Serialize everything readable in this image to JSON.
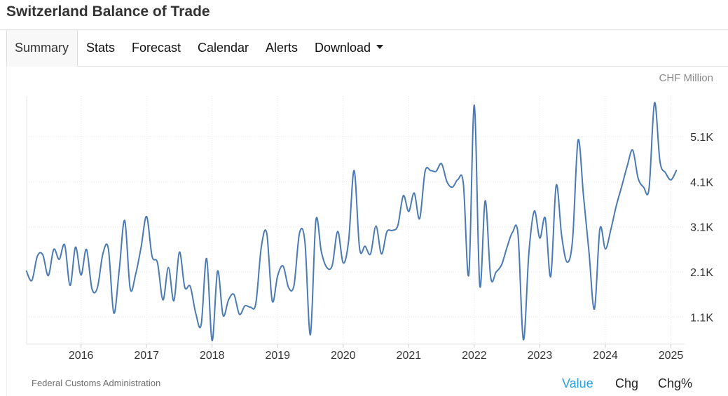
{
  "page": {
    "title": "Switzerland Balance of Trade"
  },
  "tabs": [
    {
      "label": "Summary",
      "active": true
    },
    {
      "label": "Stats"
    },
    {
      "label": "Forecast"
    },
    {
      "label": "Calendar"
    },
    {
      "label": "Alerts"
    },
    {
      "label": "Download",
      "has_dropdown": true
    }
  ],
  "chart": {
    "unit_label": "CHF Million",
    "source": "Federal Customs Administration",
    "toggles": [
      {
        "label": "Value",
        "selected": true
      },
      {
        "label": "Chg",
        "selected": false
      },
      {
        "label": "Chg%",
        "selected": false
      }
    ],
    "line_color": "#4a7ab5"
  },
  "chart_data": {
    "type": "line",
    "title": "",
    "xlabel": "",
    "ylabel": "CHF Million",
    "grid": true,
    "x_tick_labels": [
      "2016",
      "2017",
      "2018",
      "2019",
      "2020",
      "2021",
      "2022",
      "2023",
      "2024",
      "2025"
    ],
    "y_tick_labels": [
      "1.1K",
      "2.1K",
      "3.1K",
      "4.1K",
      "5.1K"
    ],
    "ylim": [
      500,
      6000
    ],
    "xlim": [
      "2015-03",
      "2025-02"
    ],
    "series": [
      {
        "x": [
          "2015-03",
          "2015-04",
          "2015-05",
          "2015-06",
          "2015-07",
          "2015-08",
          "2015-09",
          "2015-10",
          "2015-11",
          "2015-12",
          "2016-01",
          "2016-02",
          "2016-03",
          "2016-04",
          "2016-05",
          "2016-06",
          "2016-07",
          "2016-08",
          "2016-09",
          "2016-10",
          "2016-11",
          "2016-12",
          "2017-01",
          "2017-02",
          "2017-03",
          "2017-04",
          "2017-05",
          "2017-06",
          "2017-07",
          "2017-08",
          "2017-09",
          "2017-10",
          "2017-11",
          "2017-12",
          "2018-01",
          "2018-02",
          "2018-03",
          "2018-04",
          "2018-05",
          "2018-06",
          "2018-07",
          "2018-08",
          "2018-09",
          "2018-10",
          "2018-11",
          "2018-12",
          "2019-01",
          "2019-02",
          "2019-03",
          "2019-04",
          "2019-05",
          "2019-06",
          "2019-07",
          "2019-08",
          "2019-09",
          "2019-10",
          "2019-11",
          "2019-12",
          "2020-01",
          "2020-02",
          "2020-03",
          "2020-04",
          "2020-05",
          "2020-06",
          "2020-07",
          "2020-08",
          "2020-09",
          "2020-10",
          "2020-11",
          "2020-12",
          "2021-01",
          "2021-02",
          "2021-03",
          "2021-04",
          "2021-05",
          "2021-06",
          "2021-07",
          "2021-08",
          "2021-09",
          "2021-10",
          "2021-11",
          "2021-12",
          "2022-01",
          "2022-02",
          "2022-03",
          "2022-04",
          "2022-05",
          "2022-06",
          "2022-07",
          "2022-08",
          "2022-09",
          "2022-10",
          "2022-11",
          "2022-12",
          "2023-01",
          "2023-02",
          "2023-03",
          "2023-04",
          "2023-05",
          "2023-06",
          "2023-07",
          "2023-08",
          "2023-09",
          "2023-10",
          "2023-11",
          "2023-12",
          "2024-01",
          "2024-02",
          "2024-03",
          "2024-04",
          "2024-05",
          "2024-06",
          "2024-07",
          "2024-08",
          "2024-09",
          "2024-10",
          "2024-11",
          "2024-12",
          "2025-01",
          "2025-02"
        ],
        "values": [
          2120,
          1910,
          2450,
          2480,
          2020,
          2600,
          2380,
          2700,
          1800,
          2650,
          2030,
          2600,
          1730,
          1750,
          2500,
          2620,
          1190,
          2150,
          3240,
          1730,
          2050,
          2650,
          3330,
          2450,
          2300,
          1480,
          2200,
          1460,
          2540,
          1760,
          1780,
          1190,
          930,
          2400,
          580,
          2120,
          1140,
          1480,
          1600,
          1160,
          1350,
          1320,
          1400,
          2650,
          2960,
          1460,
          2020,
          2230,
          1750,
          1810,
          2960,
          2760,
          710,
          3240,
          2550,
          2200,
          2250,
          3000,
          2300,
          2800,
          4350,
          2620,
          2670,
          2500,
          3120,
          2500,
          2990,
          3020,
          3130,
          3790,
          3440,
          3850,
          3280,
          4330,
          4350,
          4330,
          4500,
          4100,
          3980,
          4150,
          4060,
          2040,
          5800,
          1800,
          3680,
          1980,
          2100,
          2260,
          2650,
          2980,
          2940,
          600,
          2520,
          3450,
          2850,
          3290,
          2000,
          4020,
          2900,
          2320,
          2820,
          5020,
          3780,
          2540,
          1280,
          3060,
          2610,
          3040,
          3570,
          4000,
          4450,
          4800,
          4180,
          3980,
          3950,
          5850,
          4550,
          4300,
          4140,
          4350
        ]
      }
    ]
  }
}
